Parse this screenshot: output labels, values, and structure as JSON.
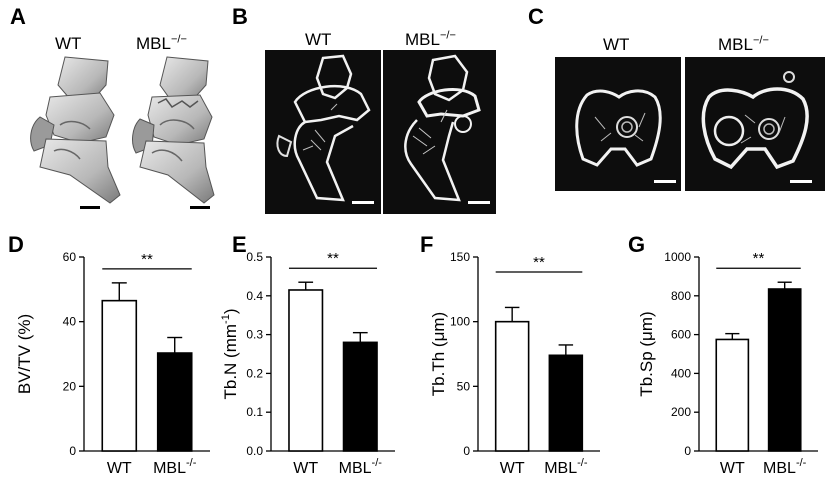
{
  "panels": {
    "A": {
      "label": "A",
      "groups": [
        "WT",
        "MBL"
      ],
      "superscript": "−/−"
    },
    "B": {
      "label": "B",
      "groups": [
        "WT",
        "MBL"
      ],
      "superscript": "−/−"
    },
    "C": {
      "label": "C",
      "groups": [
        "WT",
        "MBL"
      ],
      "superscript": "−/−"
    }
  },
  "significance_marker": "**",
  "chart_data": [
    {
      "panel": "D",
      "type": "bar",
      "categories": [
        "WT",
        "MBL"
      ],
      "category_superscripts": [
        "",
        "-/-"
      ],
      "values": [
        46.5,
        30.3
      ],
      "errors": [
        5.5,
        4.8
      ],
      "fills": [
        "#ffffff",
        "#000000"
      ],
      "ylabel": "BV/TV (%)",
      "ylim": [
        0,
        60
      ],
      "yticks": [
        0,
        20,
        40,
        60
      ],
      "significance": "**"
    },
    {
      "panel": "E",
      "type": "bar",
      "categories": [
        "WT",
        "MBL"
      ],
      "category_superscripts": [
        "",
        "-/-"
      ],
      "values": [
        0.415,
        0.28
      ],
      "errors": [
        0.02,
        0.025
      ],
      "fills": [
        "#ffffff",
        "#000000"
      ],
      "ylabel": "Tb.N (mm",
      "ylabel_superscript": "-1",
      "ylabel_suffix": ")",
      "ylim": [
        0,
        0.5
      ],
      "yticks": [
        0.0,
        0.1,
        0.2,
        0.3,
        0.4,
        0.5
      ],
      "tick_decimals": 1,
      "significance": "**"
    },
    {
      "panel": "F",
      "type": "bar",
      "categories": [
        "WT",
        "MBL"
      ],
      "category_superscripts": [
        "",
        "-/-"
      ],
      "values": [
        100,
        74
      ],
      "errors": [
        11,
        8
      ],
      "fills": [
        "#ffffff",
        "#000000"
      ],
      "ylabel": "Tb.Th (μm)",
      "ylim": [
        0,
        150
      ],
      "yticks": [
        0,
        50,
        100,
        150
      ],
      "significance": "**"
    },
    {
      "panel": "G",
      "type": "bar",
      "categories": [
        "WT",
        "MBL"
      ],
      "category_superscripts": [
        "",
        "-/-"
      ],
      "values": [
        575,
        835
      ],
      "errors": [
        30,
        35
      ],
      "fills": [
        "#ffffff",
        "#000000"
      ],
      "ylabel": "Tb.Sp (μm)",
      "ylim": [
        0,
        1000
      ],
      "yticks": [
        0,
        200,
        400,
        600,
        800,
        1000
      ],
      "significance": "**"
    }
  ]
}
